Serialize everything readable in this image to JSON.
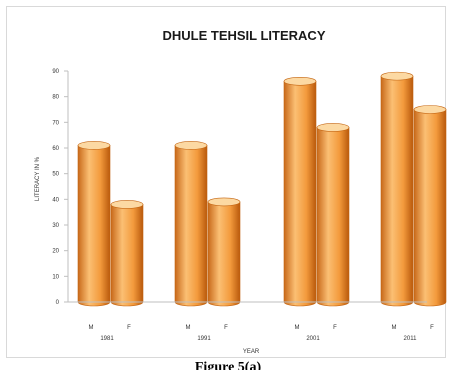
{
  "caption": "Figure 5(a)",
  "chart_data": {
    "type": "bar",
    "title": "DHULE TEHSIL LITERACY",
    "xlabel": "YEAR",
    "ylabel": "LITERACY IN %",
    "ylim": [
      0,
      90
    ],
    "yticks": [
      0,
      10,
      20,
      30,
      40,
      50,
      60,
      70,
      80,
      90
    ],
    "grid": false,
    "groups": [
      {
        "year": "1981",
        "bars": [
          {
            "label": "M",
            "value": 61
          },
          {
            "label": "F",
            "value": 38
          }
        ]
      },
      {
        "year": "1991",
        "bars": [
          {
            "label": "M",
            "value": 61
          },
          {
            "label": "F",
            "value": 39
          }
        ]
      },
      {
        "year": "2001",
        "bars": [
          {
            "label": "M",
            "value": 86
          },
          {
            "label": "F",
            "value": 68
          }
        ]
      },
      {
        "year": "2011",
        "bars": [
          {
            "label": "M",
            "value": 88
          },
          {
            "label": "F",
            "value": 75
          }
        ]
      }
    ],
    "colors": {
      "bar_light": "#fbbf73",
      "bar_mid": "#f39a3c",
      "bar_dark": "#c46512",
      "bar_top": "#fcd9a3"
    }
  }
}
